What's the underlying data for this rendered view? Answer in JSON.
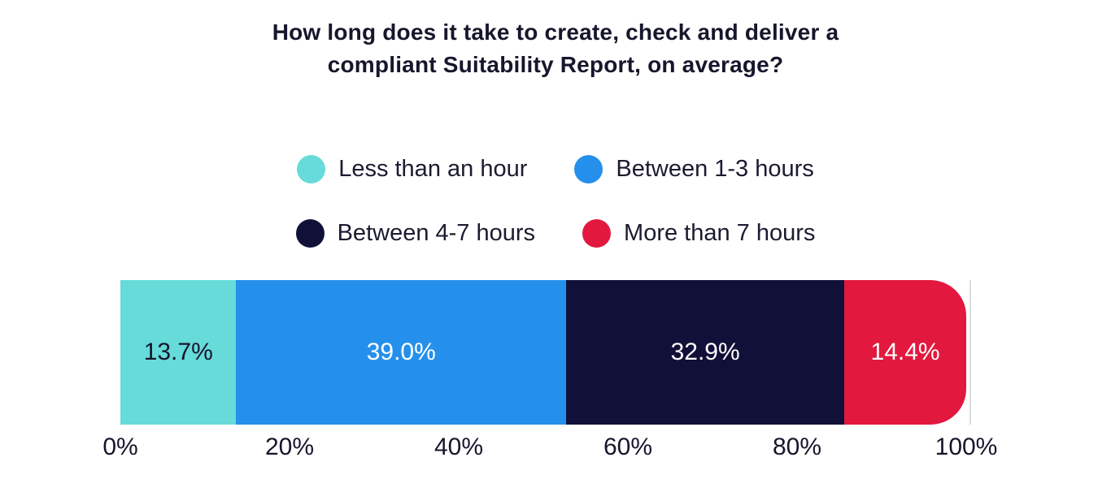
{
  "title": {
    "lines": [
      "How long does it take to create, check and deliver a",
      "compliant Suitability Report, on average?"
    ]
  },
  "chart_data": {
    "type": "bar",
    "stacked": true,
    "orientation": "horizontal",
    "title": "How long does it take to create, check and deliver a compliant Suitability Report, on average?",
    "series": [
      {
        "name": "Less than an hour",
        "value": 13.7,
        "label": "13.7%",
        "color": "#66dbd9",
        "label_color": "#15152c"
      },
      {
        "name": "Between 1-3 hours",
        "value": 39.0,
        "label": "39.0%",
        "color": "#2590eb",
        "label_color": "#ffffff"
      },
      {
        "name": "Between 4-7 hours",
        "value": 32.9,
        "label": "32.9%",
        "color": "#101038",
        "label_color": "#ffffff"
      },
      {
        "name": "More than 7 hours",
        "value": 14.4,
        "label": "14.4%",
        "color": "#e2183e",
        "label_color": "#ffffff"
      }
    ],
    "legend_position": "top",
    "legend_rows": [
      [
        0,
        1
      ],
      [
        2,
        3
      ]
    ],
    "x_axis": {
      "range": [
        0,
        100
      ],
      "ticks": [
        {
          "value": 0,
          "label": "0%"
        },
        {
          "value": 20,
          "label": "20%"
        },
        {
          "value": 40,
          "label": "40%"
        },
        {
          "value": 60,
          "label": "60%"
        },
        {
          "value": 80,
          "label": "80%"
        },
        {
          "value": 100,
          "label": "100%"
        }
      ]
    },
    "grid": "off",
    "text_color": "#16162c",
    "background_color": "#ffffff"
  }
}
